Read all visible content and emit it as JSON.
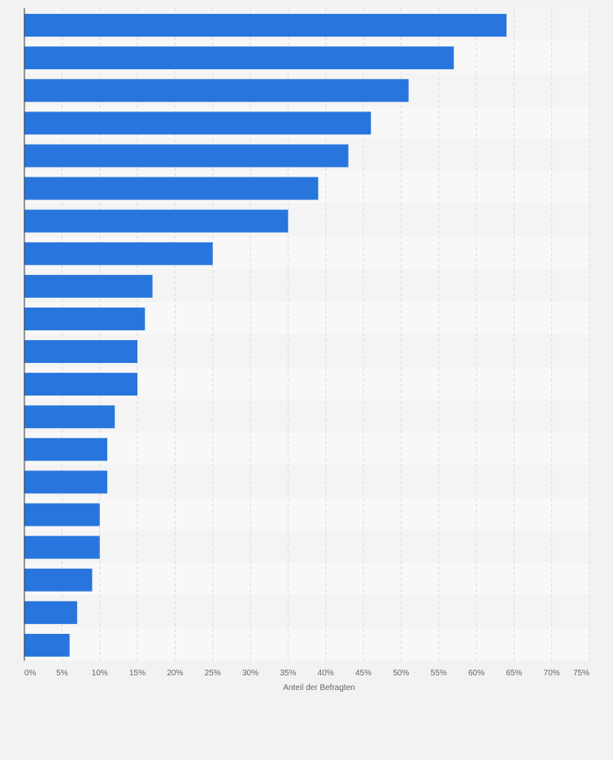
{
  "chart_data": {
    "type": "bar",
    "orientation": "horizontal",
    "categories": [
      "",
      "",
      "",
      "",
      "",
      "",
      "",
      "",
      "",
      "",
      "",
      "",
      "",
      "",
      "",
      "",
      "",
      "",
      "",
      ""
    ],
    "values": [
      64,
      57,
      51,
      46,
      43,
      39,
      35,
      25,
      17,
      16,
      15,
      15,
      12,
      11,
      11,
      10,
      10,
      9,
      7,
      6
    ],
    "xlabel": "Anteil der Befragten",
    "ylabel": "",
    "xlim": [
      0,
      75
    ],
    "xticks": [
      "0%",
      "5%",
      "10%",
      "15%",
      "20%",
      "25%",
      "30%",
      "35%",
      "40%",
      "45%",
      "50%",
      "55%",
      "60%",
      "65%",
      "70%",
      "75%"
    ],
    "grid": true,
    "bar_color": "#2876dd",
    "band_colors": [
      "#f4f4f4",
      "#f8f8f8"
    ],
    "grid_color": "#dcdcdc",
    "axis_color": "#333333",
    "tick_label_color": "#666666"
  }
}
